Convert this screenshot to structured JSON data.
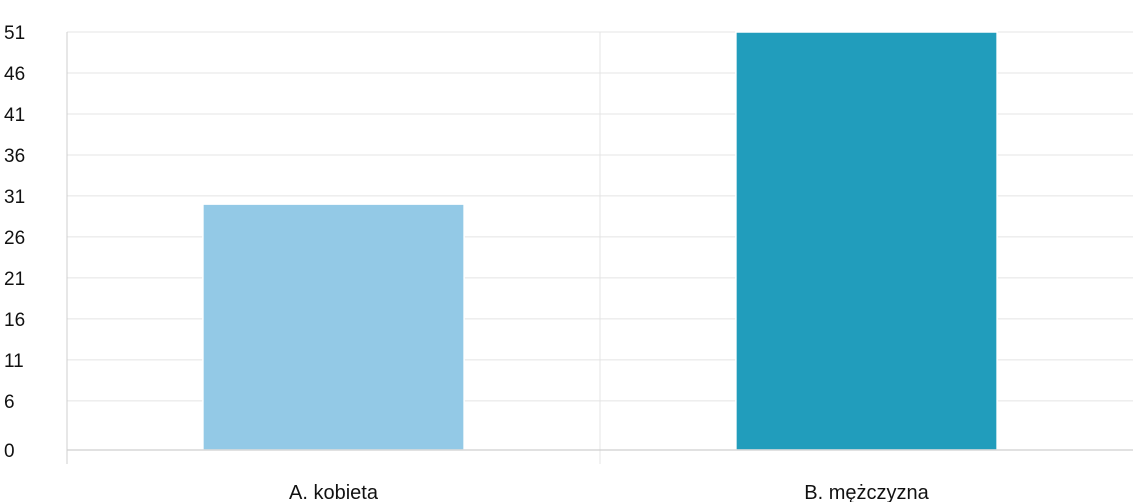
{
  "chart_data": {
    "type": "bar",
    "title": "",
    "xlabel": "",
    "ylabel": "",
    "categories": [
      "A. kobieta",
      "B. mężczyzna"
    ],
    "values": [
      30,
      51
    ],
    "colors": [
      "#93c9e6",
      "#219dbc"
    ],
    "y_ticks": [
      0,
      6,
      11,
      16,
      21,
      26,
      31,
      36,
      41,
      46,
      51
    ],
    "ylim": [
      0,
      51
    ],
    "grid": true,
    "legend": "none"
  }
}
